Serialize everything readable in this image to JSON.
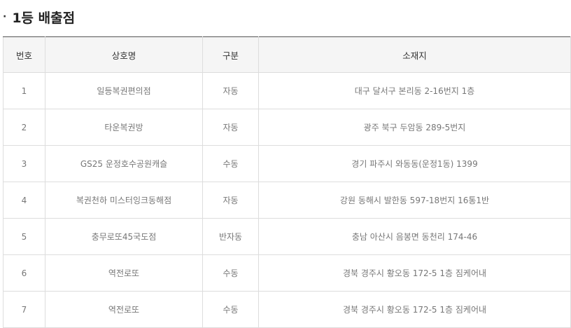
{
  "section": {
    "bullet": "·",
    "title": "1등 배출점"
  },
  "table": {
    "headers": [
      "번호",
      "상호명",
      "구분",
      "소재지"
    ],
    "rows": [
      [
        "1",
        "일등복권편의점",
        "자동",
        "대구 달서구 본리동 2-16번지 1층"
      ],
      [
        "2",
        "타운복권방",
        "자동",
        "광주 북구 두암동 289-5번지"
      ],
      [
        "3",
        "GS25 운정호수공원캐슬",
        "수동",
        "경기 파주시 와동동(운정1동) 1399"
      ],
      [
        "4",
        "복권천하 미스터잉크동해점",
        "자동",
        "강원 동해시 발한동 597-18번지 16통1반"
      ],
      [
        "5",
        "충무로또45국도점",
        "반자동",
        "충남 아산시 음봉면 동천리 174-46"
      ],
      [
        "6",
        "역전로또",
        "수동",
        "경북 경주시 황오동 172-5 1층 짐케어내"
      ],
      [
        "7",
        "역전로또",
        "수동",
        "경북 경주시 황오동 172-5 1층 짐케어내"
      ]
    ]
  }
}
